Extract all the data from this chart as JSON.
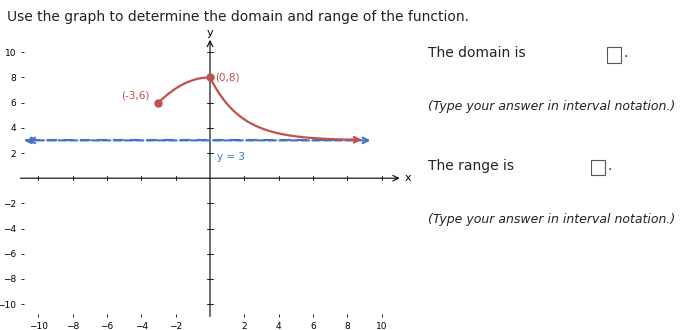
{
  "title": "Use the graph to determine the domain and range of the function.",
  "right_line1": "The domain is □.",
  "right_line2": "(Type your answer in interval notation.)",
  "right_line3": "The range is □.",
  "right_line4": "(Type your answer in interval notation.)",
  "xlim": [
    -11,
    11
  ],
  "ylim": [
    -11,
    11
  ],
  "xticks": [
    -10,
    -8,
    -6,
    -4,
    -2,
    2,
    4,
    6,
    8,
    10
  ],
  "yticks": [
    -10,
    -8,
    -6,
    -4,
    -2,
    2,
    4,
    6,
    8,
    10
  ],
  "point1": [
    -3,
    6
  ],
  "point1_label": "(-3,6)",
  "point2": [
    0,
    8
  ],
  "point2_label": "(0,8)",
  "asymptote_y": 3,
  "asymptote_label": "y = 3",
  "curve_color": "#c0504d",
  "asymptote_color": "#4472c4",
  "bg_color": "#ffffff",
  "text_color": "#222222",
  "title_fontsize": 10,
  "tick_fontsize": 6.5,
  "curve_lw": 1.6,
  "asymptote_lw": 1.5
}
